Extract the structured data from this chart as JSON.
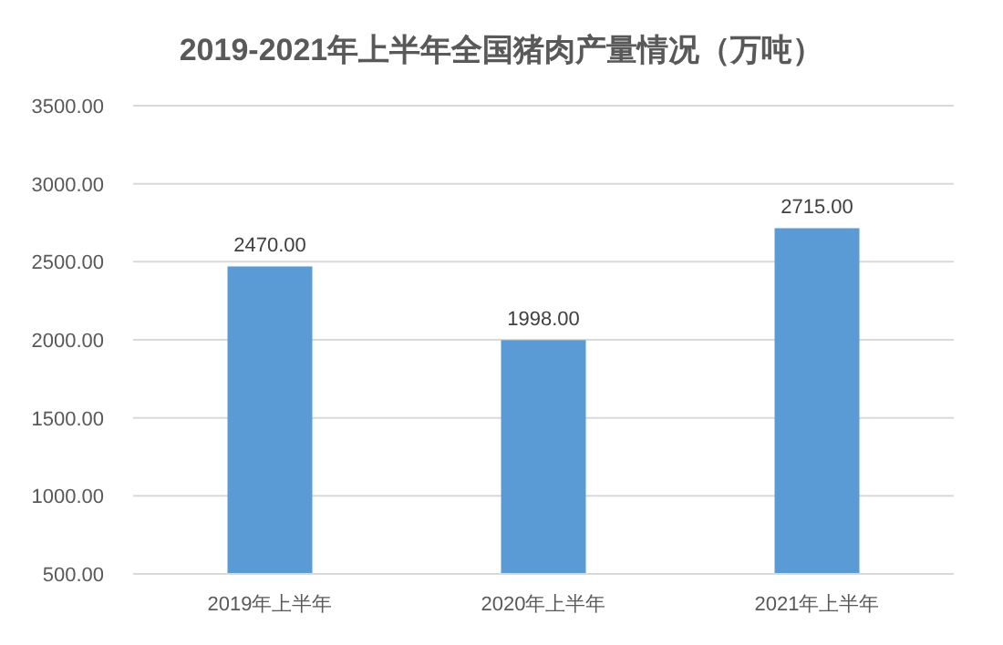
{
  "chart_data": {
    "type": "bar",
    "title": "2019-2021年上半年全国猪肉产量情况（万吨）",
    "categories": [
      "2019年上半年",
      "2020年上半年",
      "2021年上半年"
    ],
    "values": [
      2470,
      1998,
      2715
    ],
    "value_labels": [
      "2470.00",
      "1998.00",
      "2715.00"
    ],
    "color": "#5b9bd5",
    "ylim": [
      500,
      3500
    ],
    "yticks": [
      {
        "value": 500,
        "label": "500.00"
      },
      {
        "value": 1000,
        "label": "1000.00"
      },
      {
        "value": 1500,
        "label": "1500.00"
      },
      {
        "value": 2000,
        "label": "2000.00"
      },
      {
        "value": 2500,
        "label": "2500.00"
      },
      {
        "value": 3000,
        "label": "3000.00"
      },
      {
        "value": 3500,
        "label": "3500.00"
      }
    ],
    "grid": "y"
  }
}
